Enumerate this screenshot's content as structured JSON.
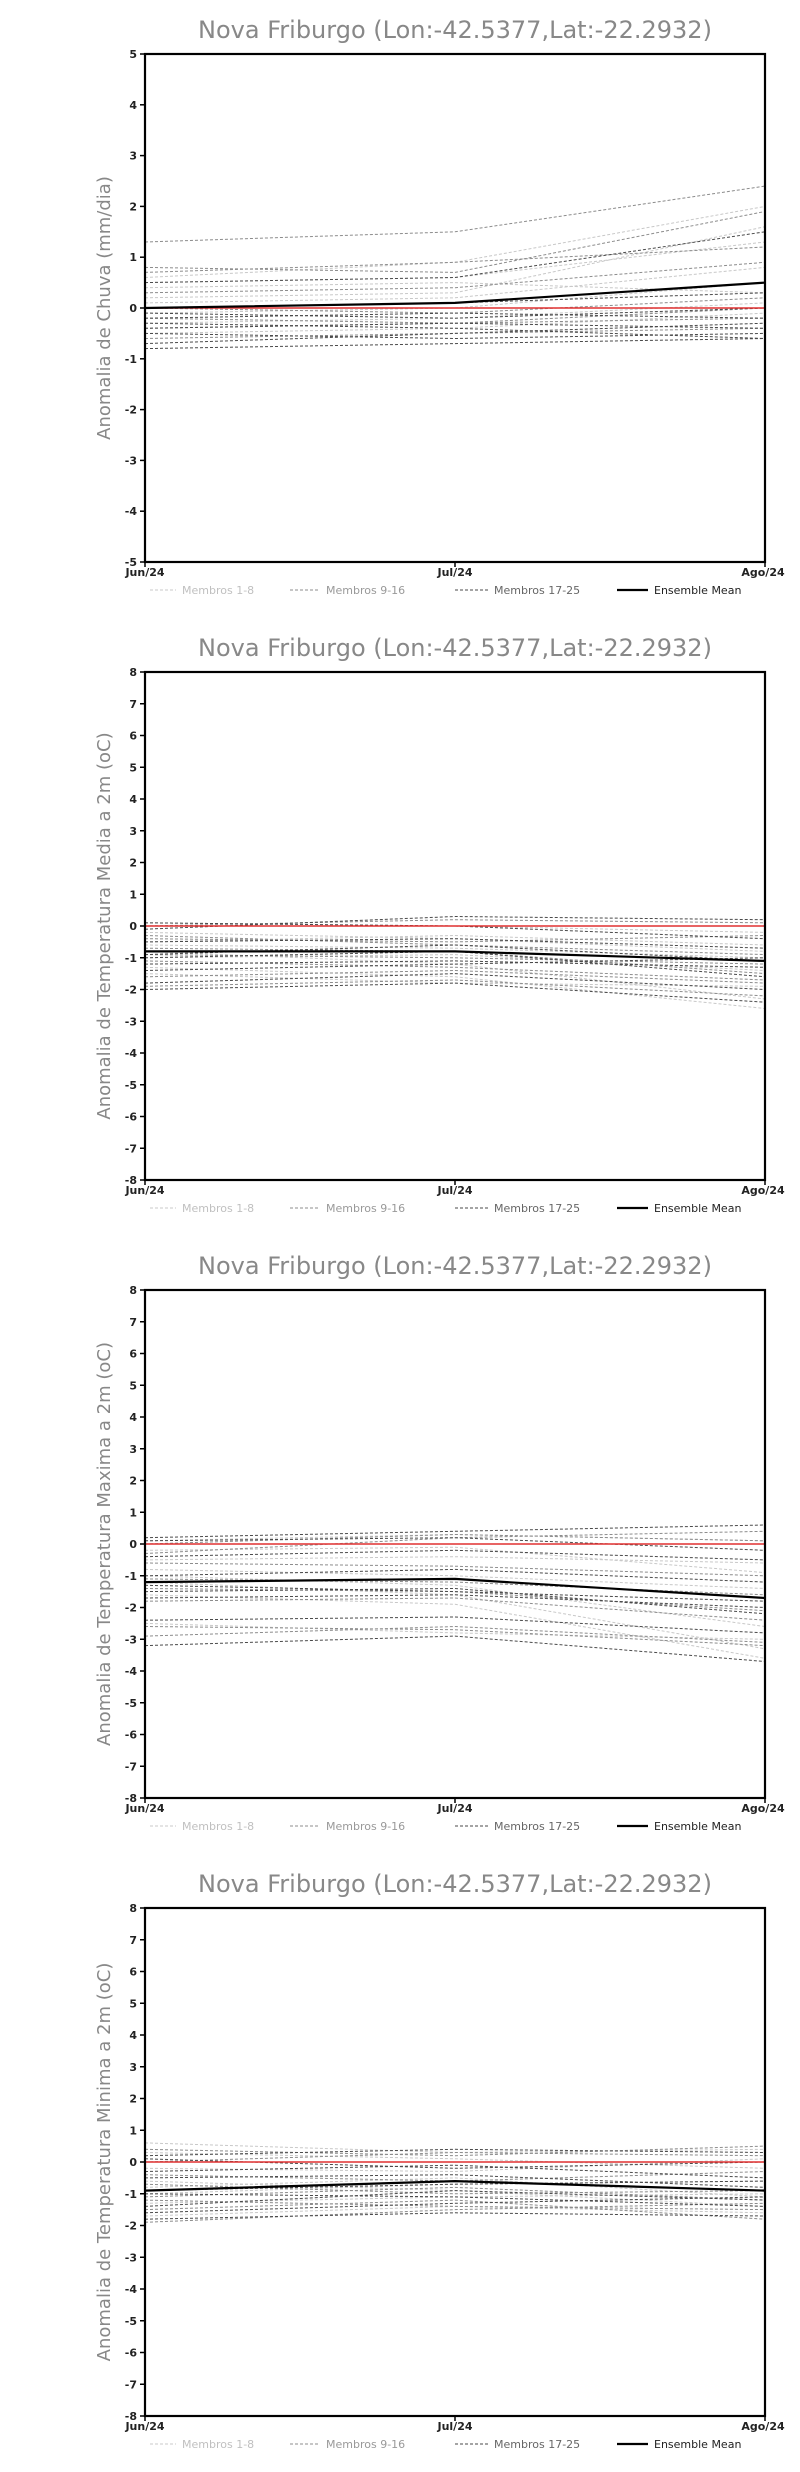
{
  "chart_data": [
    {
      "type": "line",
      "title": "Nova Friburgo (Lon:-42.5377,Lat:-22.2932)",
      "ylabel": "Anomalia de Chuva (mm/dia)",
      "xlabel": "",
      "categories": [
        "Jun/24",
        "Jul/24",
        "Ago/24"
      ],
      "ylim": [
        -5,
        5
      ],
      "yticks": [
        -5,
        -4,
        -3,
        -2,
        -1,
        0,
        1,
        2,
        3,
        4,
        5
      ],
      "legend": [
        "Membros 1-8",
        "Membros 9-16",
        "Membros 17-25",
        "Ensemble Mean"
      ],
      "legend_position": "bottom",
      "grid": false,
      "series": [
        {
          "group": "1-8",
          "values": [
            0.6,
            0.9,
            2.0
          ]
        },
        {
          "group": "1-8",
          "values": [
            0.5,
            0.6,
            1.3
          ]
        },
        {
          "group": "1-8",
          "values": [
            0.2,
            0.3,
            1.6
          ]
        },
        {
          "group": "1-8",
          "values": [
            -0.3,
            -0.2,
            0.1
          ]
        },
        {
          "group": "1-8",
          "values": [
            -0.5,
            -0.4,
            -0.1
          ]
        },
        {
          "group": "1-8",
          "values": [
            0.1,
            0.2,
            0.8
          ]
        },
        {
          "group": "1-8",
          "values": [
            0.4,
            0.5,
            0.3
          ]
        },
        {
          "group": "1-8",
          "values": [
            -0.1,
            0.0,
            0.5
          ]
        },
        {
          "group": "9-16",
          "values": [
            1.3,
            1.5,
            2.4
          ]
        },
        {
          "group": "9-16",
          "values": [
            0.7,
            0.9,
            1.2
          ]
        },
        {
          "group": "9-16",
          "values": [
            -0.2,
            -0.3,
            -0.2
          ]
        },
        {
          "group": "9-16",
          "values": [
            -0.6,
            -0.5,
            -0.4
          ]
        },
        {
          "group": "9-16",
          "values": [
            0.3,
            0.4,
            0.9
          ]
        },
        {
          "group": "9-16",
          "values": [
            -0.4,
            -0.3,
            0.0
          ]
        },
        {
          "group": "9-16",
          "values": [
            0.0,
            -0.1,
            0.2
          ]
        },
        {
          "group": "9-16",
          "values": [
            0.8,
            0.7,
            1.9
          ]
        },
        {
          "group": "17-25",
          "values": [
            -0.3,
            -0.4,
            -0.6
          ]
        },
        {
          "group": "17-25",
          "values": [
            -0.5,
            -0.6,
            -0.5
          ]
        },
        {
          "group": "17-25",
          "values": [
            -0.7,
            -0.5,
            -0.3
          ]
        },
        {
          "group": "17-25",
          "values": [
            -0.2,
            -0.1,
            -0.2
          ]
        },
        {
          "group": "17-25",
          "values": [
            0.0,
            0.1,
            0.3
          ]
        },
        {
          "group": "17-25",
          "values": [
            -0.4,
            -0.3,
            -0.4
          ]
        },
        {
          "group": "17-25",
          "values": [
            -0.8,
            -0.7,
            -0.6
          ]
        },
        {
          "group": "17-25",
          "values": [
            -0.1,
            -0.2,
            0.0
          ]
        },
        {
          "group": "17-25",
          "values": [
            0.5,
            0.6,
            1.5
          ]
        },
        {
          "group": "red",
          "values": [
            0.0,
            0.0,
            0.0
          ]
        },
        {
          "group": "mean",
          "values": [
            0.0,
            0.1,
            0.5
          ]
        }
      ]
    },
    {
      "type": "line",
      "title": "Nova Friburgo (Lon:-42.5377,Lat:-22.2932)",
      "ylabel": "Anomalia de Temperatura Media a 2m (oC)",
      "xlabel": "",
      "categories": [
        "Jun/24",
        "Jul/24",
        "Ago/24"
      ],
      "ylim": [
        -8,
        8
      ],
      "yticks": [
        -8,
        -7,
        -6,
        -5,
        -4,
        -3,
        -2,
        -1,
        0,
        1,
        2,
        3,
        4,
        5,
        6,
        7,
        8
      ],
      "legend": [
        "Membros 1-8",
        "Membros 9-16",
        "Membros 17-25",
        "Ensemble Mean"
      ],
      "legend_position": "bottom",
      "grid": false,
      "series": [
        {
          "group": "1-8",
          "values": [
            -0.2,
            -0.4,
            -0.8
          ]
        },
        {
          "group": "1-8",
          "values": [
            -0.8,
            -1.2,
            -2.3
          ]
        },
        {
          "group": "1-8",
          "values": [
            -1.5,
            -1.8,
            -1.9
          ]
        },
        {
          "group": "1-8",
          "values": [
            -0.5,
            -0.3,
            -0.6
          ]
        },
        {
          "group": "1-8",
          "values": [
            -1.0,
            -0.9,
            -1.4
          ]
        },
        {
          "group": "1-8",
          "values": [
            0.1,
            0.0,
            -0.2
          ]
        },
        {
          "group": "1-8",
          "values": [
            -1.3,
            -1.6,
            -2.6
          ]
        },
        {
          "group": "1-8",
          "values": [
            -0.6,
            -0.7,
            -1.0
          ]
        },
        {
          "group": "9-16",
          "values": [
            -1.9,
            -1.7,
            -2.2
          ]
        },
        {
          "group": "9-16",
          "values": [
            -0.4,
            -0.5,
            -0.3
          ]
        },
        {
          "group": "9-16",
          "values": [
            -1.1,
            -1.3,
            -1.7
          ]
        },
        {
          "group": "9-16",
          "values": [
            0.0,
            0.2,
            0.1
          ]
        },
        {
          "group": "9-16",
          "values": [
            -0.9,
            -1.0,
            -1.2
          ]
        },
        {
          "group": "9-16",
          "values": [
            -1.6,
            -1.4,
            -1.8
          ]
        },
        {
          "group": "9-16",
          "values": [
            -0.3,
            -0.6,
            -0.9
          ]
        },
        {
          "group": "9-16",
          "values": [
            -0.7,
            -0.8,
            -1.5
          ]
        },
        {
          "group": "17-25",
          "values": [
            -2.0,
            -1.8,
            -2.4
          ]
        },
        {
          "group": "17-25",
          "values": [
            -1.2,
            -1.1,
            -1.3
          ]
        },
        {
          "group": "17-25",
          "values": [
            -0.1,
            0.3,
            0.2
          ]
        },
        {
          "group": "17-25",
          "values": [
            -0.9,
            -0.6,
            -1.1
          ]
        },
        {
          "group": "17-25",
          "values": [
            -1.4,
            -1.2,
            -1.0
          ]
        },
        {
          "group": "17-25",
          "values": [
            -0.5,
            -0.4,
            -0.7
          ]
        },
        {
          "group": "17-25",
          "values": [
            -1.8,
            -1.5,
            -2.0
          ]
        },
        {
          "group": "17-25",
          "values": [
            0.1,
            0.0,
            -0.4
          ]
        },
        {
          "group": "17-25",
          "values": [
            -1.0,
            -0.8,
            -1.6
          ]
        },
        {
          "group": "red",
          "values": [
            0.0,
            0.0,
            0.0
          ]
        },
        {
          "group": "mean",
          "values": [
            -0.8,
            -0.8,
            -1.1
          ]
        }
      ]
    },
    {
      "type": "line",
      "title": "Nova Friburgo (Lon:-42.5377,Lat:-22.2932)",
      "ylabel": "Anomalia de Temperatura Maxima a 2m (oC)",
      "xlabel": "",
      "categories": [
        "Jun/24",
        "Jul/24",
        "Ago/24"
      ],
      "ylim": [
        -8,
        8
      ],
      "yticks": [
        -8,
        -7,
        -6,
        -5,
        -4,
        -3,
        -2,
        -1,
        0,
        1,
        2,
        3,
        4,
        5,
        6,
        7,
        8
      ],
      "legend": [
        "Membros 1-8",
        "Membros 9-16",
        "Membros 17-25",
        "Ensemble Mean"
      ],
      "legend_position": "bottom",
      "grid": false,
      "series": [
        {
          "group": "1-8",
          "values": [
            -0.2,
            -0.1,
            -0.9
          ]
        },
        {
          "group": "1-8",
          "values": [
            -1.2,
            -1.6,
            -3.3
          ]
        },
        {
          "group": "1-8",
          "values": [
            -2.5,
            -2.8,
            -3.0
          ]
        },
        {
          "group": "1-8",
          "values": [
            0.1,
            0.3,
            0.1
          ]
        },
        {
          "group": "1-8",
          "values": [
            -1.0,
            -1.3,
            -2.6
          ]
        },
        {
          "group": "1-8",
          "values": [
            -0.5,
            -0.4,
            -0.6
          ]
        },
        {
          "group": "1-8",
          "values": [
            -1.6,
            -1.9,
            -3.6
          ]
        },
        {
          "group": "1-8",
          "values": [
            -0.8,
            -1.0,
            -1.4
          ]
        },
        {
          "group": "9-16",
          "values": [
            -2.6,
            -2.7,
            -3.2
          ]
        },
        {
          "group": "9-16",
          "values": [
            -0.3,
            0.2,
            0.4
          ]
        },
        {
          "group": "9-16",
          "values": [
            -1.4,
            -1.5,
            -2.1
          ]
        },
        {
          "group": "9-16",
          "values": [
            0.0,
            0.3,
            0.1
          ]
        },
        {
          "group": "9-16",
          "values": [
            -1.1,
            -1.2,
            -1.6
          ]
        },
        {
          "group": "9-16",
          "values": [
            -2.9,
            -2.6,
            -3.1
          ]
        },
        {
          "group": "9-16",
          "values": [
            -0.6,
            -0.7,
            -1.0
          ]
        },
        {
          "group": "9-16",
          "values": [
            -1.8,
            -1.7,
            -2.4
          ]
        },
        {
          "group": "17-25",
          "values": [
            -3.2,
            -2.9,
            -3.7
          ]
        },
        {
          "group": "17-25",
          "values": [
            -1.5,
            -1.4,
            -2.2
          ]
        },
        {
          "group": "17-25",
          "values": [
            0.2,
            0.4,
            0.6
          ]
        },
        {
          "group": "17-25",
          "values": [
            -1.0,
            -0.8,
            -1.2
          ]
        },
        {
          "group": "17-25",
          "values": [
            -1.7,
            -1.6,
            -2.0
          ]
        },
        {
          "group": "17-25",
          "values": [
            -0.4,
            -0.2,
            -0.5
          ]
        },
        {
          "group": "17-25",
          "values": [
            -2.4,
            -2.3,
            -2.8
          ]
        },
        {
          "group": "17-25",
          "values": [
            0.1,
            0.2,
            -0.2
          ]
        },
        {
          "group": "17-25",
          "values": [
            -1.3,
            -1.5,
            -1.8
          ]
        },
        {
          "group": "red",
          "values": [
            0.0,
            0.0,
            0.0
          ]
        },
        {
          "group": "mean",
          "values": [
            -1.2,
            -1.1,
            -1.7
          ]
        }
      ]
    },
    {
      "type": "line",
      "title": "Nova Friburgo (Lon:-42.5377,Lat:-22.2932)",
      "ylabel": "Anomalia de Temperatura Minima a 2m (oC)",
      "xlabel": "",
      "categories": [
        "Jun/24",
        "Jul/24",
        "Ago/24"
      ],
      "ylim": [
        -8,
        8
      ],
      "yticks": [
        -8,
        -7,
        -6,
        -5,
        -4,
        -3,
        -2,
        -1,
        0,
        1,
        2,
        3,
        4,
        5,
        6,
        7,
        8
      ],
      "legend": [
        "Membros 1-8",
        "Membros 9-16",
        "Membros 17-25",
        "Ensemble Mean"
      ],
      "legend_position": "bottom",
      "grid": false,
      "series": [
        {
          "group": "1-8",
          "values": [
            -0.6,
            -0.9,
            -1.4
          ]
        },
        {
          "group": "1-8",
          "values": [
            -1.3,
            -1.1,
            -1.0
          ]
        },
        {
          "group": "1-8",
          "values": [
            0.3,
            0.1,
            -0.2
          ]
        },
        {
          "group": "1-8",
          "values": [
            -1.7,
            -1.4,
            -1.6
          ]
        },
        {
          "group": "1-8",
          "values": [
            -0.2,
            -0.3,
            0.1
          ]
        },
        {
          "group": "1-8",
          "values": [
            -1.0,
            -0.7,
            -0.6
          ]
        },
        {
          "group": "1-8",
          "values": [
            0.6,
            0.3,
            0.4
          ]
        },
        {
          "group": "1-8",
          "values": [
            -0.8,
            -0.5,
            -1.1
          ]
        },
        {
          "group": "9-16",
          "values": [
            -1.9,
            -1.5,
            -1.3
          ]
        },
        {
          "group": "9-16",
          "values": [
            0.4,
            0.2,
            0.5
          ]
        },
        {
          "group": "9-16",
          "values": [
            -1.1,
            -0.8,
            -1.2
          ]
        },
        {
          "group": "9-16",
          "values": [
            -0.4,
            -0.6,
            -0.3
          ]
        },
        {
          "group": "9-16",
          "values": [
            -1.5,
            -1.2,
            -1.8
          ]
        },
        {
          "group": "9-16",
          "values": [
            0.0,
            0.3,
            0.2
          ]
        },
        {
          "group": "9-16",
          "values": [
            -0.7,
            -1.0,
            -0.9
          ]
        },
        {
          "group": "9-16",
          "values": [
            -1.2,
            -1.4,
            -1.5
          ]
        },
        {
          "group": "17-25",
          "values": [
            -1.6,
            -1.3,
            -1.1
          ]
        },
        {
          "group": "17-25",
          "values": [
            0.2,
            0.4,
            0.3
          ]
        },
        {
          "group": "17-25",
          "values": [
            -1.0,
            -1.1,
            -1.4
          ]
        },
        {
          "group": "17-25",
          "values": [
            -0.3,
            -0.1,
            -0.5
          ]
        },
        {
          "group": "17-25",
          "values": [
            -1.4,
            -0.9,
            -1.2
          ]
        },
        {
          "group": "17-25",
          "values": [
            -0.5,
            -0.4,
            -0.8
          ]
        },
        {
          "group": "17-25",
          "values": [
            -1.8,
            -1.6,
            -1.7
          ]
        },
        {
          "group": "17-25",
          "values": [
            0.1,
            -0.2,
            0.0
          ]
        },
        {
          "group": "17-25",
          "values": [
            -0.9,
            -0.7,
            -0.6
          ]
        },
        {
          "group": "red",
          "values": [
            0.0,
            0.0,
            0.0
          ]
        },
        {
          "group": "mean",
          "values": [
            -0.9,
            -0.6,
            -0.9
          ]
        }
      ]
    }
  ],
  "styles": {
    "group_colors": {
      "1-8": "#c8c8c8",
      "9-16": "#8c8c8c",
      "17-25": "#4a4a4a",
      "red": "#e03030",
      "mean": "#000000"
    },
    "title_color": "#888888",
    "axis_color": "#000000"
  }
}
